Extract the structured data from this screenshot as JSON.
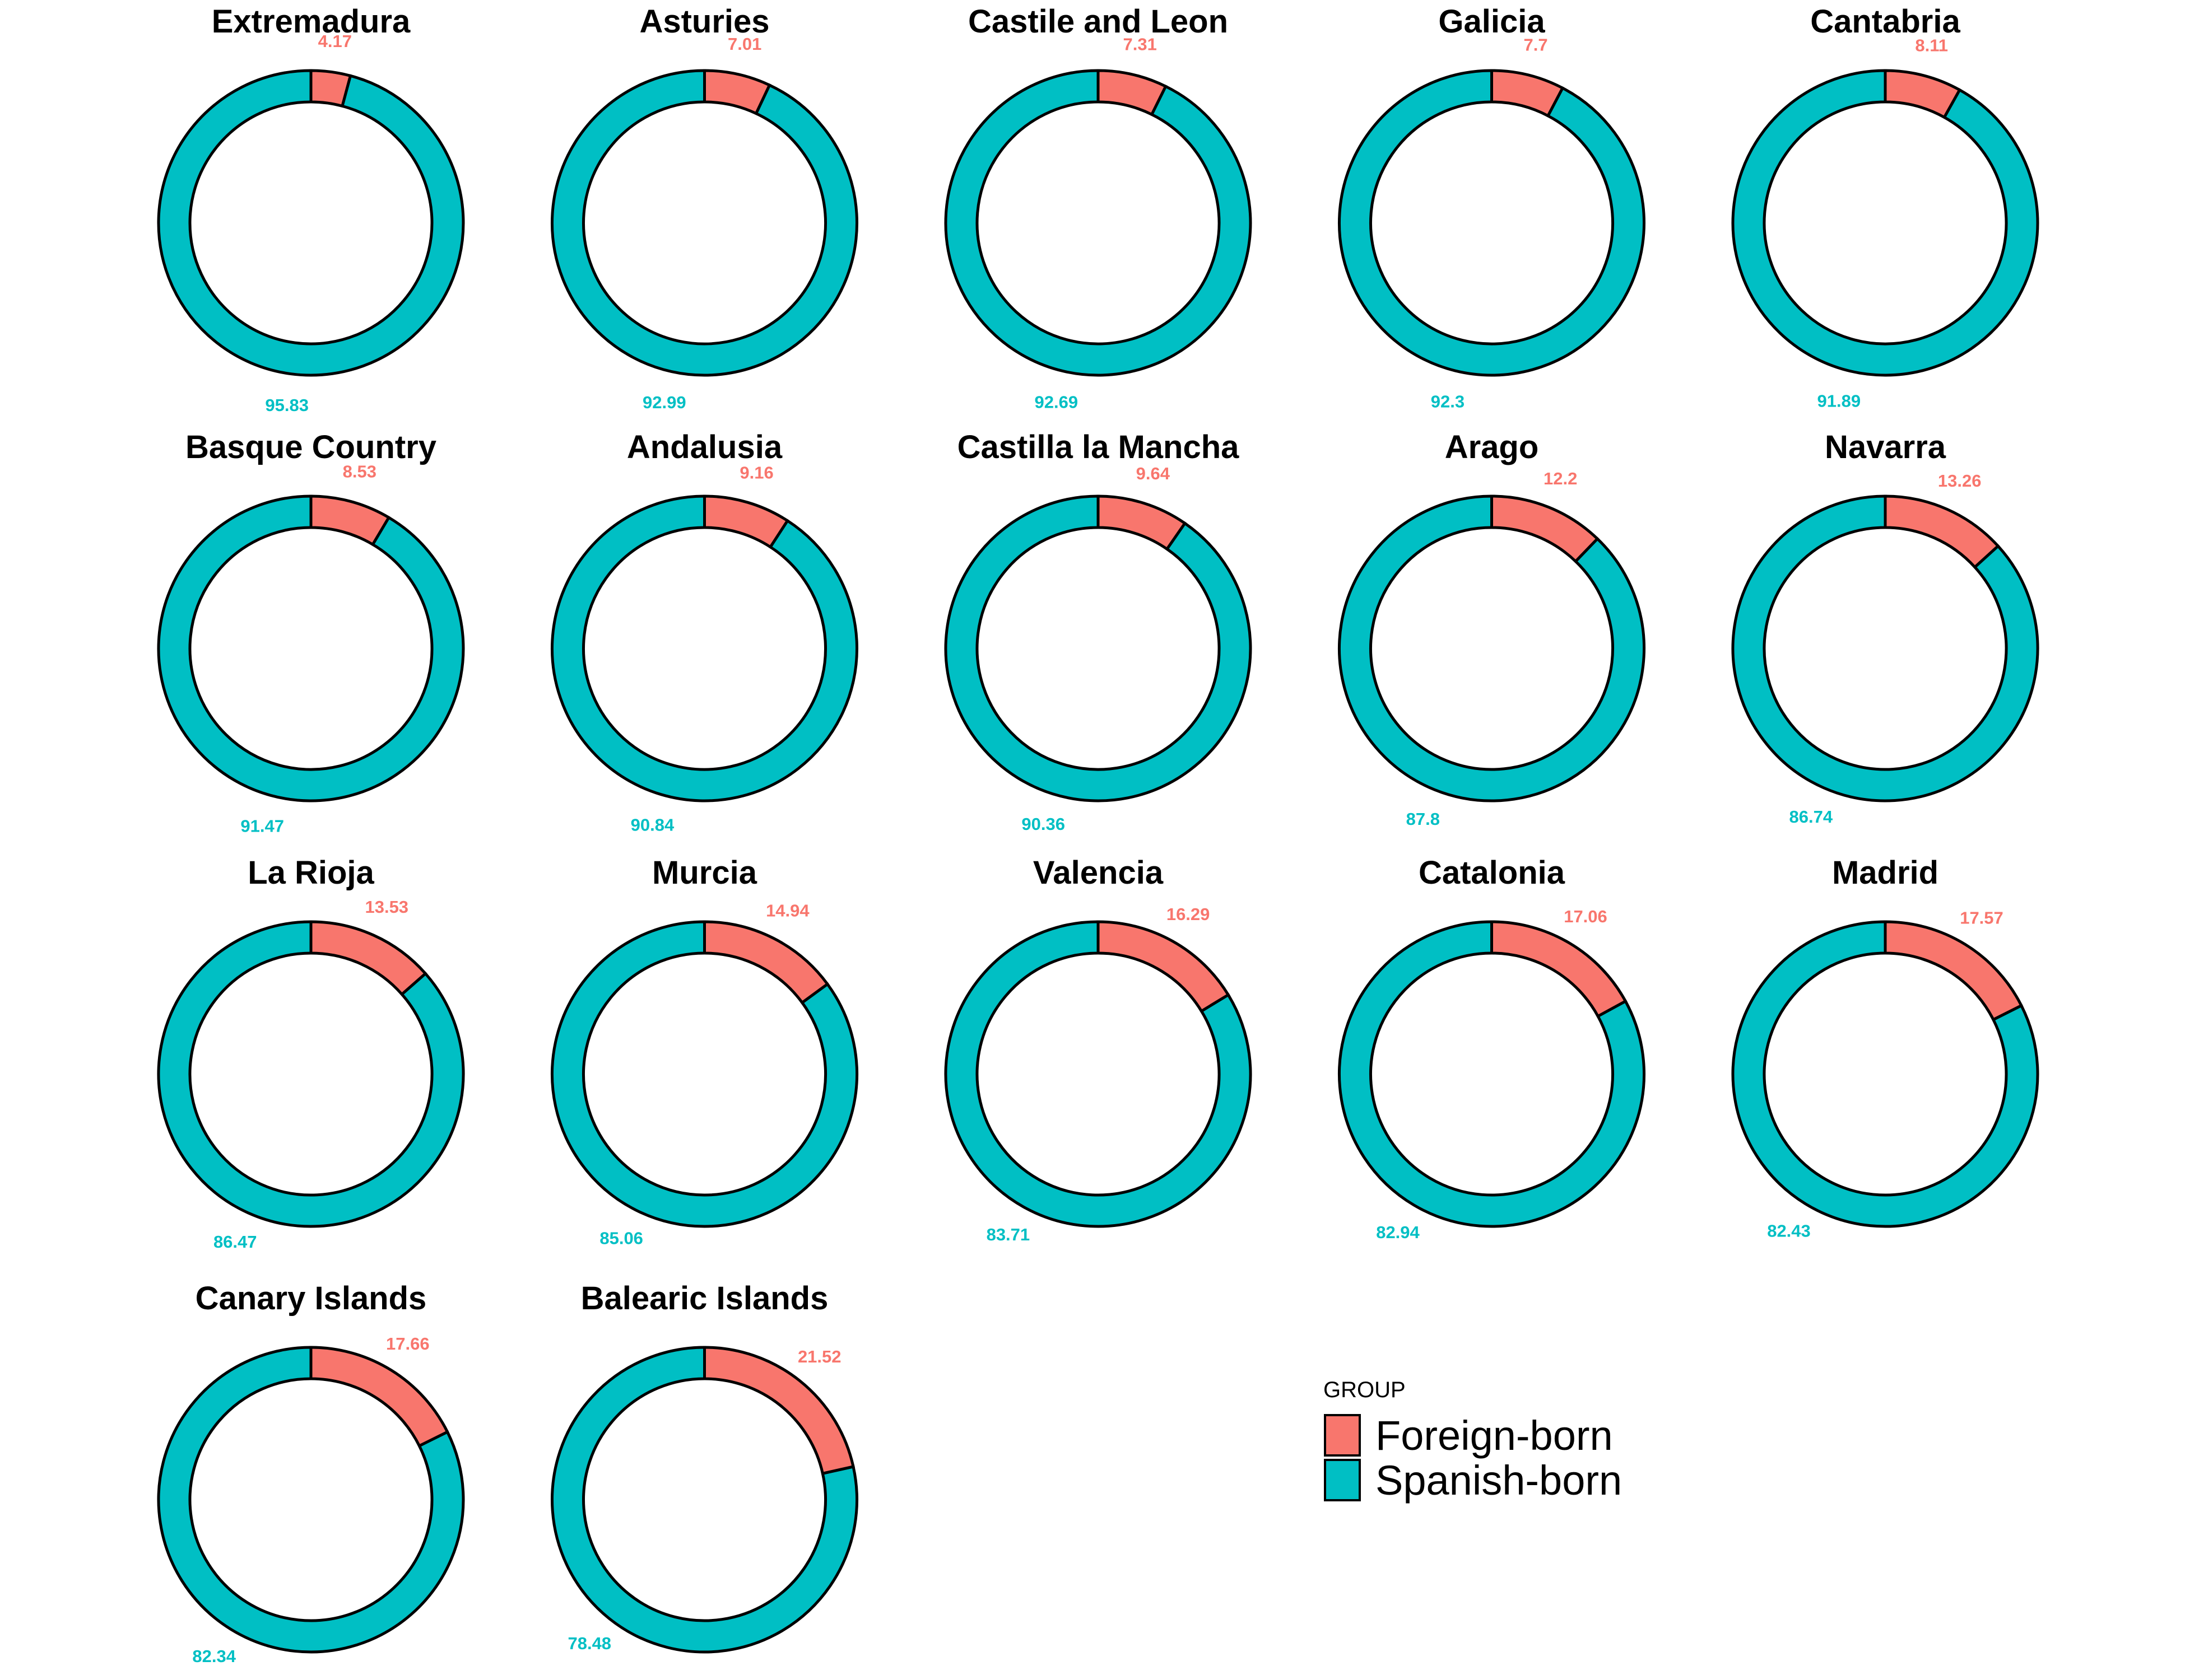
{
  "chart_data": {
    "type": "pie",
    "legend": {
      "title": "GROUP",
      "placement": "bottom-right",
      "entries": [
        {
          "key": "foreign",
          "label": "Foreign-born",
          "color": "#F8766D"
        },
        {
          "key": "spanish",
          "label": "Spanish-born",
          "color": "#00BFC4"
        }
      ]
    },
    "panels": [
      {
        "region": "Extremadura",
        "foreign": 4.17,
        "spanish": 95.83
      },
      {
        "region": "Asturies",
        "foreign": 7.01,
        "spanish": 92.99
      },
      {
        "region": "Castile and Leon",
        "foreign": 7.31,
        "spanish": 92.69
      },
      {
        "region": "Galicia",
        "foreign": 7.7,
        "spanish": 92.3
      },
      {
        "region": "Cantabria",
        "foreign": 8.11,
        "spanish": 91.89
      },
      {
        "region": "Basque Country",
        "foreign": 8.53,
        "spanish": 91.47
      },
      {
        "region": "Andalusia",
        "foreign": 9.16,
        "spanish": 90.84
      },
      {
        "region": "Castilla la Mancha",
        "foreign": 9.64,
        "spanish": 90.36
      },
      {
        "region": "Arago",
        "foreign": 12.2,
        "spanish": 87.8
      },
      {
        "region": "Navarra",
        "foreign": 13.26,
        "spanish": 86.74
      },
      {
        "region": "La Rioja",
        "foreign": 13.53,
        "spanish": 86.47
      },
      {
        "region": "Murcia",
        "foreign": 14.94,
        "spanish": 85.06
      },
      {
        "region": "Valencia",
        "foreign": 16.29,
        "spanish": 83.71
      },
      {
        "region": "Catalonia",
        "foreign": 17.06,
        "spanish": 82.94
      },
      {
        "region": "Madrid",
        "foreign": 17.57,
        "spanish": 82.43
      },
      {
        "region": "Canary Islands",
        "foreign": 17.66,
        "spanish": 82.34
      },
      {
        "region": "Balearic Islands",
        "foreign": 21.52,
        "spanish": 78.48
      }
    ]
  }
}
